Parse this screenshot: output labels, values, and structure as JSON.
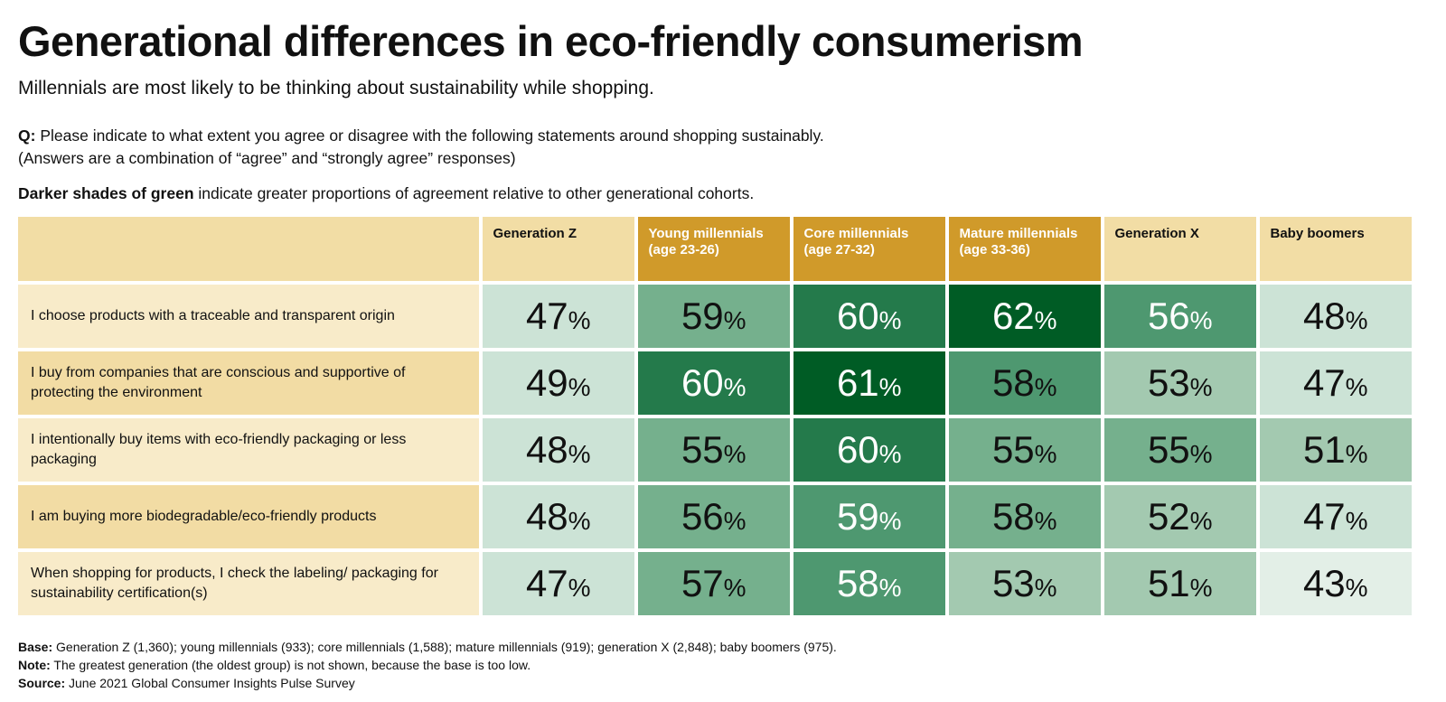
{
  "title": "Generational differences in eco-friendly consumerism",
  "subtitle": "Millennials are most likely to be thinking about sustainability while shopping.",
  "question": {
    "label": "Q:",
    "text": "Please indicate to what extent you agree or disagree with the following statements around shopping sustainably.",
    "note": "(Answers are a combination of “agree” and “strongly agree” responses)"
  },
  "shade_note": {
    "bold": "Darker shades of green",
    "text": " indicate greater proportions of agreement relative to other generational cohorts."
  },
  "chart_data": {
    "type": "heatmap",
    "unit": "%",
    "columns": [
      "Generation Z",
      "Young millennials (age 23-26)",
      "Core millennials (age 27-32)",
      "Mature millennials (age 33-36)",
      "Generation X",
      "Baby boomers"
    ],
    "highlighted_columns": [
      false,
      true,
      true,
      true,
      false,
      false
    ],
    "rows": [
      {
        "label": "I choose products with a traceable and transparent origin",
        "values": [
          47,
          59,
          60,
          62,
          56,
          48
        ],
        "shades": [
          1,
          3,
          5,
          6,
          4,
          1
        ]
      },
      {
        "label": "I buy from companies that are conscious and supportive of protecting the environment",
        "values": [
          49,
          60,
          61,
          58,
          53,
          47
        ],
        "shades": [
          1,
          5,
          6,
          4,
          2,
          1
        ]
      },
      {
        "label": "I intentionally buy items with eco-friendly packaging or less packaging",
        "values": [
          48,
          55,
          60,
          55,
          55,
          51
        ],
        "shades": [
          1,
          3,
          5,
          3,
          3,
          2
        ]
      },
      {
        "label": "I am buying more biodegradable/eco-friendly products",
        "values": [
          48,
          56,
          59,
          58,
          52,
          47
        ],
        "shades": [
          1,
          3,
          4,
          3,
          2,
          1
        ]
      },
      {
        "label": "When shopping for products, I check the labeling/ packaging for sustainability certification(s)",
        "values": [
          47,
          57,
          58,
          53,
          51,
          43
        ],
        "shades": [
          1,
          3,
          4,
          2,
          2,
          0
        ]
      }
    ],
    "shade_colors": [
      "#e3efe7",
      "#cce3d6",
      "#a3c9b0",
      "#75b08d",
      "#4e9870",
      "#247a4b",
      "#005c25"
    ]
  },
  "footer": {
    "base_label": "Base:",
    "base": "Generation Z (1,360); young millennials (933); core millennials (1,588); mature millennials (919); generation X (2,848); baby boomers (975).",
    "note_label": "Note:",
    "note": "The greatest generation (the oldest group) is not shown, because the base is too low.",
    "source_label": "Source:",
    "source": "June 2021 Global Consumer Insights Pulse Survey"
  }
}
